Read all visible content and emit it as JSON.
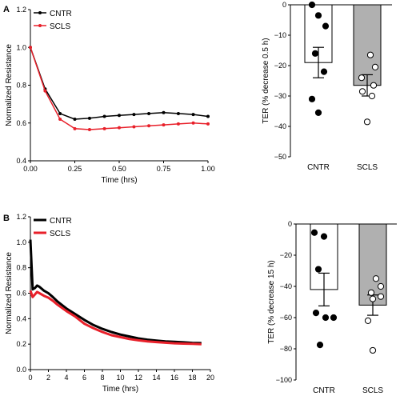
{
  "colors": {
    "cntr": "#000000",
    "scls": "#e8202a",
    "bar_border": "#000000",
    "scls_bar_fill": "#b0b0b0"
  },
  "chart_data": [
    {
      "panel": "A",
      "type": "line",
      "xlabel": "Time (hrs)",
      "ylabel": "Normalized Resistance",
      "xlim": [
        0,
        1.0
      ],
      "ylim": [
        0.4,
        1.2
      ],
      "xticks": [
        "0.00",
        "0.25",
        "0.50",
        "0.75",
        "1.00"
      ],
      "yticks": [
        "0.4",
        "0.6",
        "0.8",
        "1.0",
        "1.2"
      ],
      "legend": [
        "CNTR",
        "SCLS"
      ],
      "legend_position": "top-left",
      "series": [
        {
          "name": "CNTR",
          "markers": true,
          "x": [
            0.0,
            0.083,
            0.167,
            0.25,
            0.333,
            0.417,
            0.5,
            0.583,
            0.667,
            0.75,
            0.833,
            0.917,
            1.0
          ],
          "y": [
            1.0,
            0.78,
            0.65,
            0.62,
            0.625,
            0.635,
            0.64,
            0.645,
            0.65,
            0.655,
            0.65,
            0.645,
            0.635
          ]
        },
        {
          "name": "SCLS",
          "markers": true,
          "x": [
            0.0,
            0.083,
            0.167,
            0.25,
            0.333,
            0.417,
            0.5,
            0.583,
            0.667,
            0.75,
            0.833,
            0.917,
            1.0
          ],
          "y": [
            1.0,
            0.77,
            0.62,
            0.57,
            0.565,
            0.57,
            0.575,
            0.58,
            0.585,
            0.59,
            0.595,
            0.6,
            0.595
          ]
        }
      ]
    },
    {
      "panel": "A",
      "type": "bar",
      "categories": [
        "CNTR",
        "SCLS"
      ],
      "values": [
        -19,
        -26.5
      ],
      "error": [
        5,
        3.5
      ],
      "points": [
        [
          0,
          -3.5,
          -7,
          -16,
          -22,
          -31,
          -35.5
        ],
        [
          -16.5,
          -20.5,
          -24,
          -26.5,
          -28.5,
          -30,
          -38.5
        ]
      ],
      "ylabel": "TER (% decrease 0.5 h)",
      "ylim": [
        -50,
        0
      ],
      "yticks": [
        "0",
        "−10",
        "−20",
        "−30",
        "−40",
        "−50"
      ]
    },
    {
      "panel": "B",
      "type": "line",
      "xlabel": "Time (hrs)",
      "ylabel": "Normalized Resistance",
      "xlim": [
        0,
        20
      ],
      "ylim": [
        0.0,
        1.2
      ],
      "xticks": [
        "0",
        "2",
        "4",
        "6",
        "8",
        "10",
        "12",
        "14",
        "16",
        "18",
        "20"
      ],
      "yticks": [
        "0.0",
        "0.2",
        "0.4",
        "0.6",
        "0.8",
        "1.0",
        "1.2"
      ],
      "legend": [
        "CNTR",
        "SCLS"
      ],
      "legend_position": "top-left",
      "series": [
        {
          "name": "CNTR",
          "markers": false,
          "x": [
            0,
            0.25,
            0.5,
            0.75,
            1.0,
            1.5,
            2,
            2.5,
            3,
            4,
            5,
            6,
            7,
            8,
            9,
            10,
            11,
            12,
            13,
            14,
            15,
            16,
            17,
            18,
            19
          ],
          "y": [
            1.02,
            0.63,
            0.64,
            0.66,
            0.65,
            0.62,
            0.6,
            0.57,
            0.535,
            0.48,
            0.435,
            0.39,
            0.35,
            0.32,
            0.295,
            0.275,
            0.26,
            0.245,
            0.235,
            0.228,
            0.222,
            0.218,
            0.214,
            0.21,
            0.208
          ]
        },
        {
          "name": "SCLS",
          "markers": false,
          "x": [
            0,
            0.25,
            0.5,
            0.75,
            1.0,
            1.5,
            2,
            2.5,
            3,
            4,
            5,
            6,
            7,
            8,
            9,
            10,
            11,
            12,
            13,
            14,
            15,
            16,
            17,
            18,
            19
          ],
          "y": [
            0.62,
            0.57,
            0.59,
            0.61,
            0.6,
            0.58,
            0.565,
            0.54,
            0.51,
            0.46,
            0.415,
            0.36,
            0.325,
            0.295,
            0.27,
            0.255,
            0.24,
            0.23,
            0.222,
            0.216,
            0.211,
            0.207,
            0.204,
            0.202,
            0.2
          ]
        }
      ]
    },
    {
      "panel": "B",
      "type": "bar",
      "categories": [
        "CNTR",
        "SCLS"
      ],
      "values": [
        -42,
        -52
      ],
      "error": [
        10.5,
        6.5
      ],
      "points": [
        [
          -5.5,
          -8,
          -29,
          -57,
          -60,
          -60,
          -77.5
        ],
        [
          -35,
          -40,
          -44,
          -46.5,
          -48,
          -62,
          -81
        ]
      ],
      "ylabel": "TER (% decrease 15 h)",
      "ylim": [
        -100,
        0
      ],
      "yticks": [
        "0",
        "−20",
        "−40",
        "−60",
        "−80",
        "−100"
      ]
    }
  ],
  "panel_labels": [
    "A",
    "B"
  ]
}
